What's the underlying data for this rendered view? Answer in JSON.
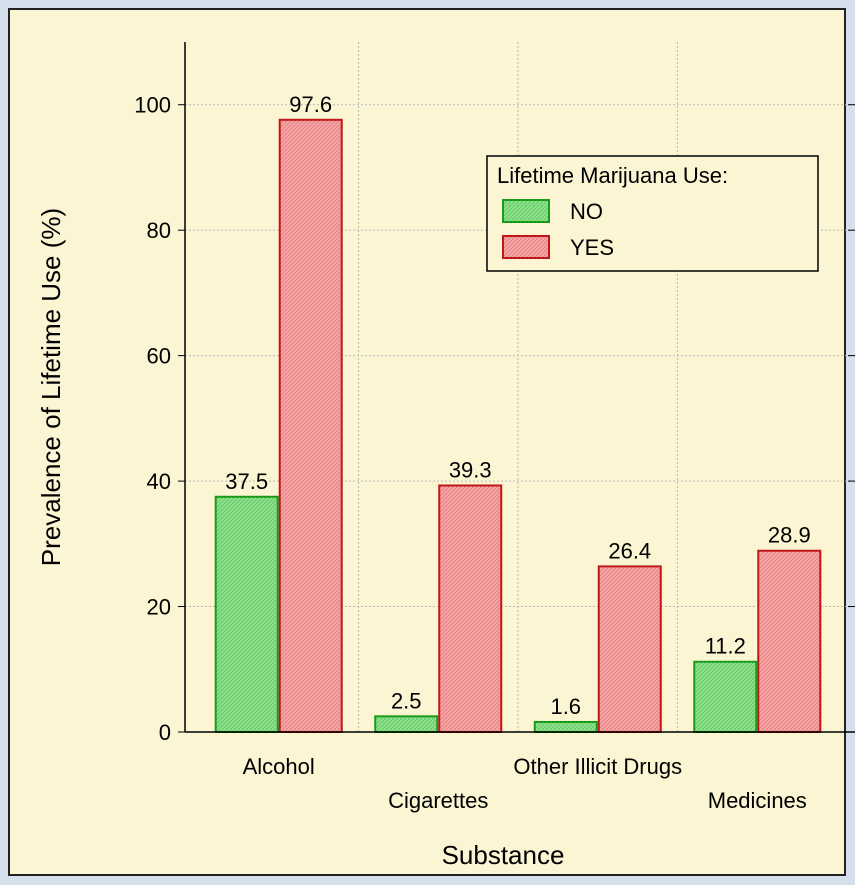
{
  "chart_data": {
    "type": "bar",
    "title": "",
    "xlabel": "Substance",
    "ylabel": "Prevalence of Lifetime Use (%)",
    "categories": [
      "Alcohol",
      "Cigarettes",
      "Other Illicit Drugs",
      "Medicines"
    ],
    "series": [
      {
        "name": "NO",
        "values": [
          37.5,
          2.5,
          1.6,
          11.2
        ],
        "fill": "#7fdc7f",
        "stroke": "#1a9a1a"
      },
      {
        "name": "YES",
        "values": [
          97.6,
          39.3,
          26.4,
          28.9
        ],
        "fill": "#f29a9a",
        "stroke": "#c01818"
      }
    ],
    "yticks": [
      0,
      20,
      40,
      60,
      80,
      100
    ],
    "ylim": [
      0,
      110
    ],
    "grid": true,
    "legend": {
      "title": "Lifetime Marijuana Use:",
      "position": "top-right"
    }
  }
}
